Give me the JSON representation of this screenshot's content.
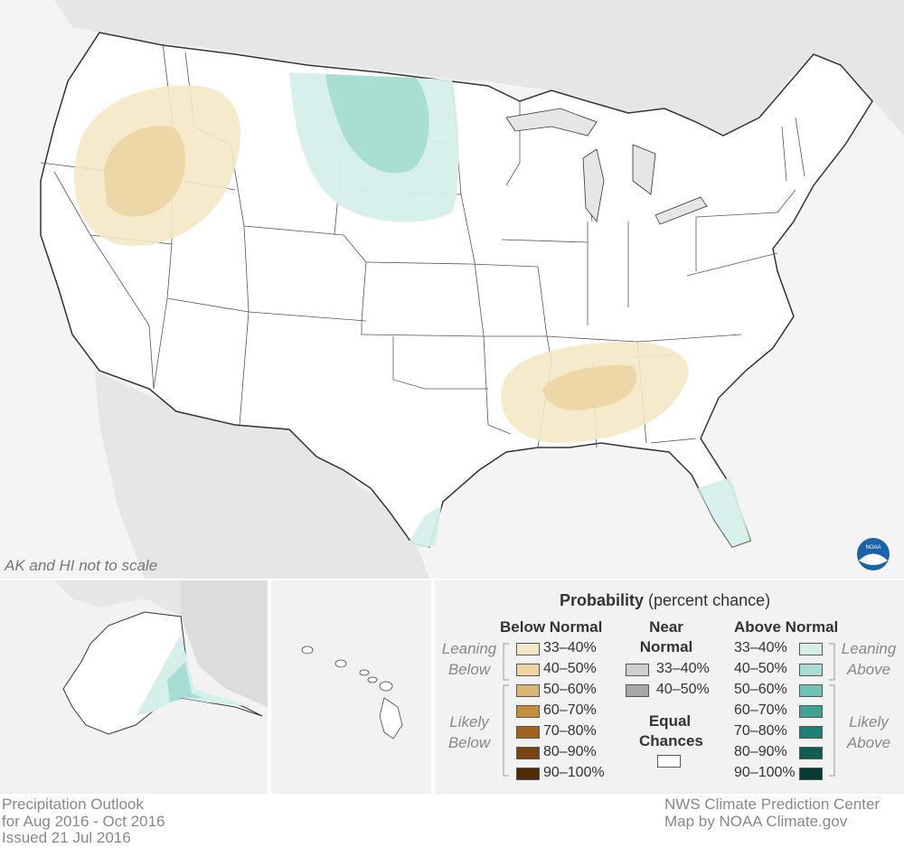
{
  "map_note": "AK and HI not to scale",
  "legend": {
    "title_bold": "Probability",
    "title_normal": "(percent chance)",
    "below": {
      "heading": "Below Normal",
      "leaning_label": [
        "Leaning",
        "Below"
      ],
      "likely_label": [
        "Likely",
        "Below"
      ],
      "items": [
        {
          "label": "33–40%",
          "color": "#f5e8c8"
        },
        {
          "label": "40–50%",
          "color": "#edd6a4"
        },
        {
          "label": "50–60%",
          "color": "#d9b672"
        },
        {
          "label": "60–70%",
          "color": "#c48e3e"
        },
        {
          "label": "70–80%",
          "color": "#a0641f"
        },
        {
          "label": "80–90%",
          "color": "#7a430f"
        },
        {
          "label": "90–100%",
          "color": "#4f2a06"
        }
      ]
    },
    "near": {
      "heading": [
        "Near",
        "Normal"
      ],
      "items": [
        {
          "label": "33–40%",
          "color": "#cfcfcf"
        },
        {
          "label": "40–50%",
          "color": "#a8a8a8"
        }
      ]
    },
    "equal": {
      "heading": [
        "Equal",
        "Chances"
      ],
      "color": "#ffffff"
    },
    "above": {
      "heading": "Above Normal",
      "leaning_label": [
        "Leaning",
        "Above"
      ],
      "likely_label": [
        "Likely",
        "Above"
      ],
      "items": [
        {
          "label": "33–40%",
          "color": "#d5efea"
        },
        {
          "label": "40–50%",
          "color": "#a7ddd2"
        },
        {
          "label": "50–60%",
          "color": "#6dc4b4"
        },
        {
          "label": "60–70%",
          "color": "#3fa394"
        },
        {
          "label": "70–80%",
          "color": "#1d8072"
        },
        {
          "label": "80–90%",
          "color": "#0d5e52"
        },
        {
          "label": "90–100%",
          "color": "#053b33"
        }
      ]
    }
  },
  "footer": {
    "left": [
      "Precipitation Outlook",
      "for Aug 2016 - Oct 2016",
      "Issued 21 Jul 2016"
    ],
    "right": [
      "NWS Climate Prediction Center",
      "Map by NOAA Climate.gov"
    ]
  },
  "logo_text": "NOAA",
  "map_colors": {
    "land_outside": "#e6e6e6",
    "water": "#f4f4f4",
    "us_land": "#ffffff",
    "border": "#333333"
  }
}
